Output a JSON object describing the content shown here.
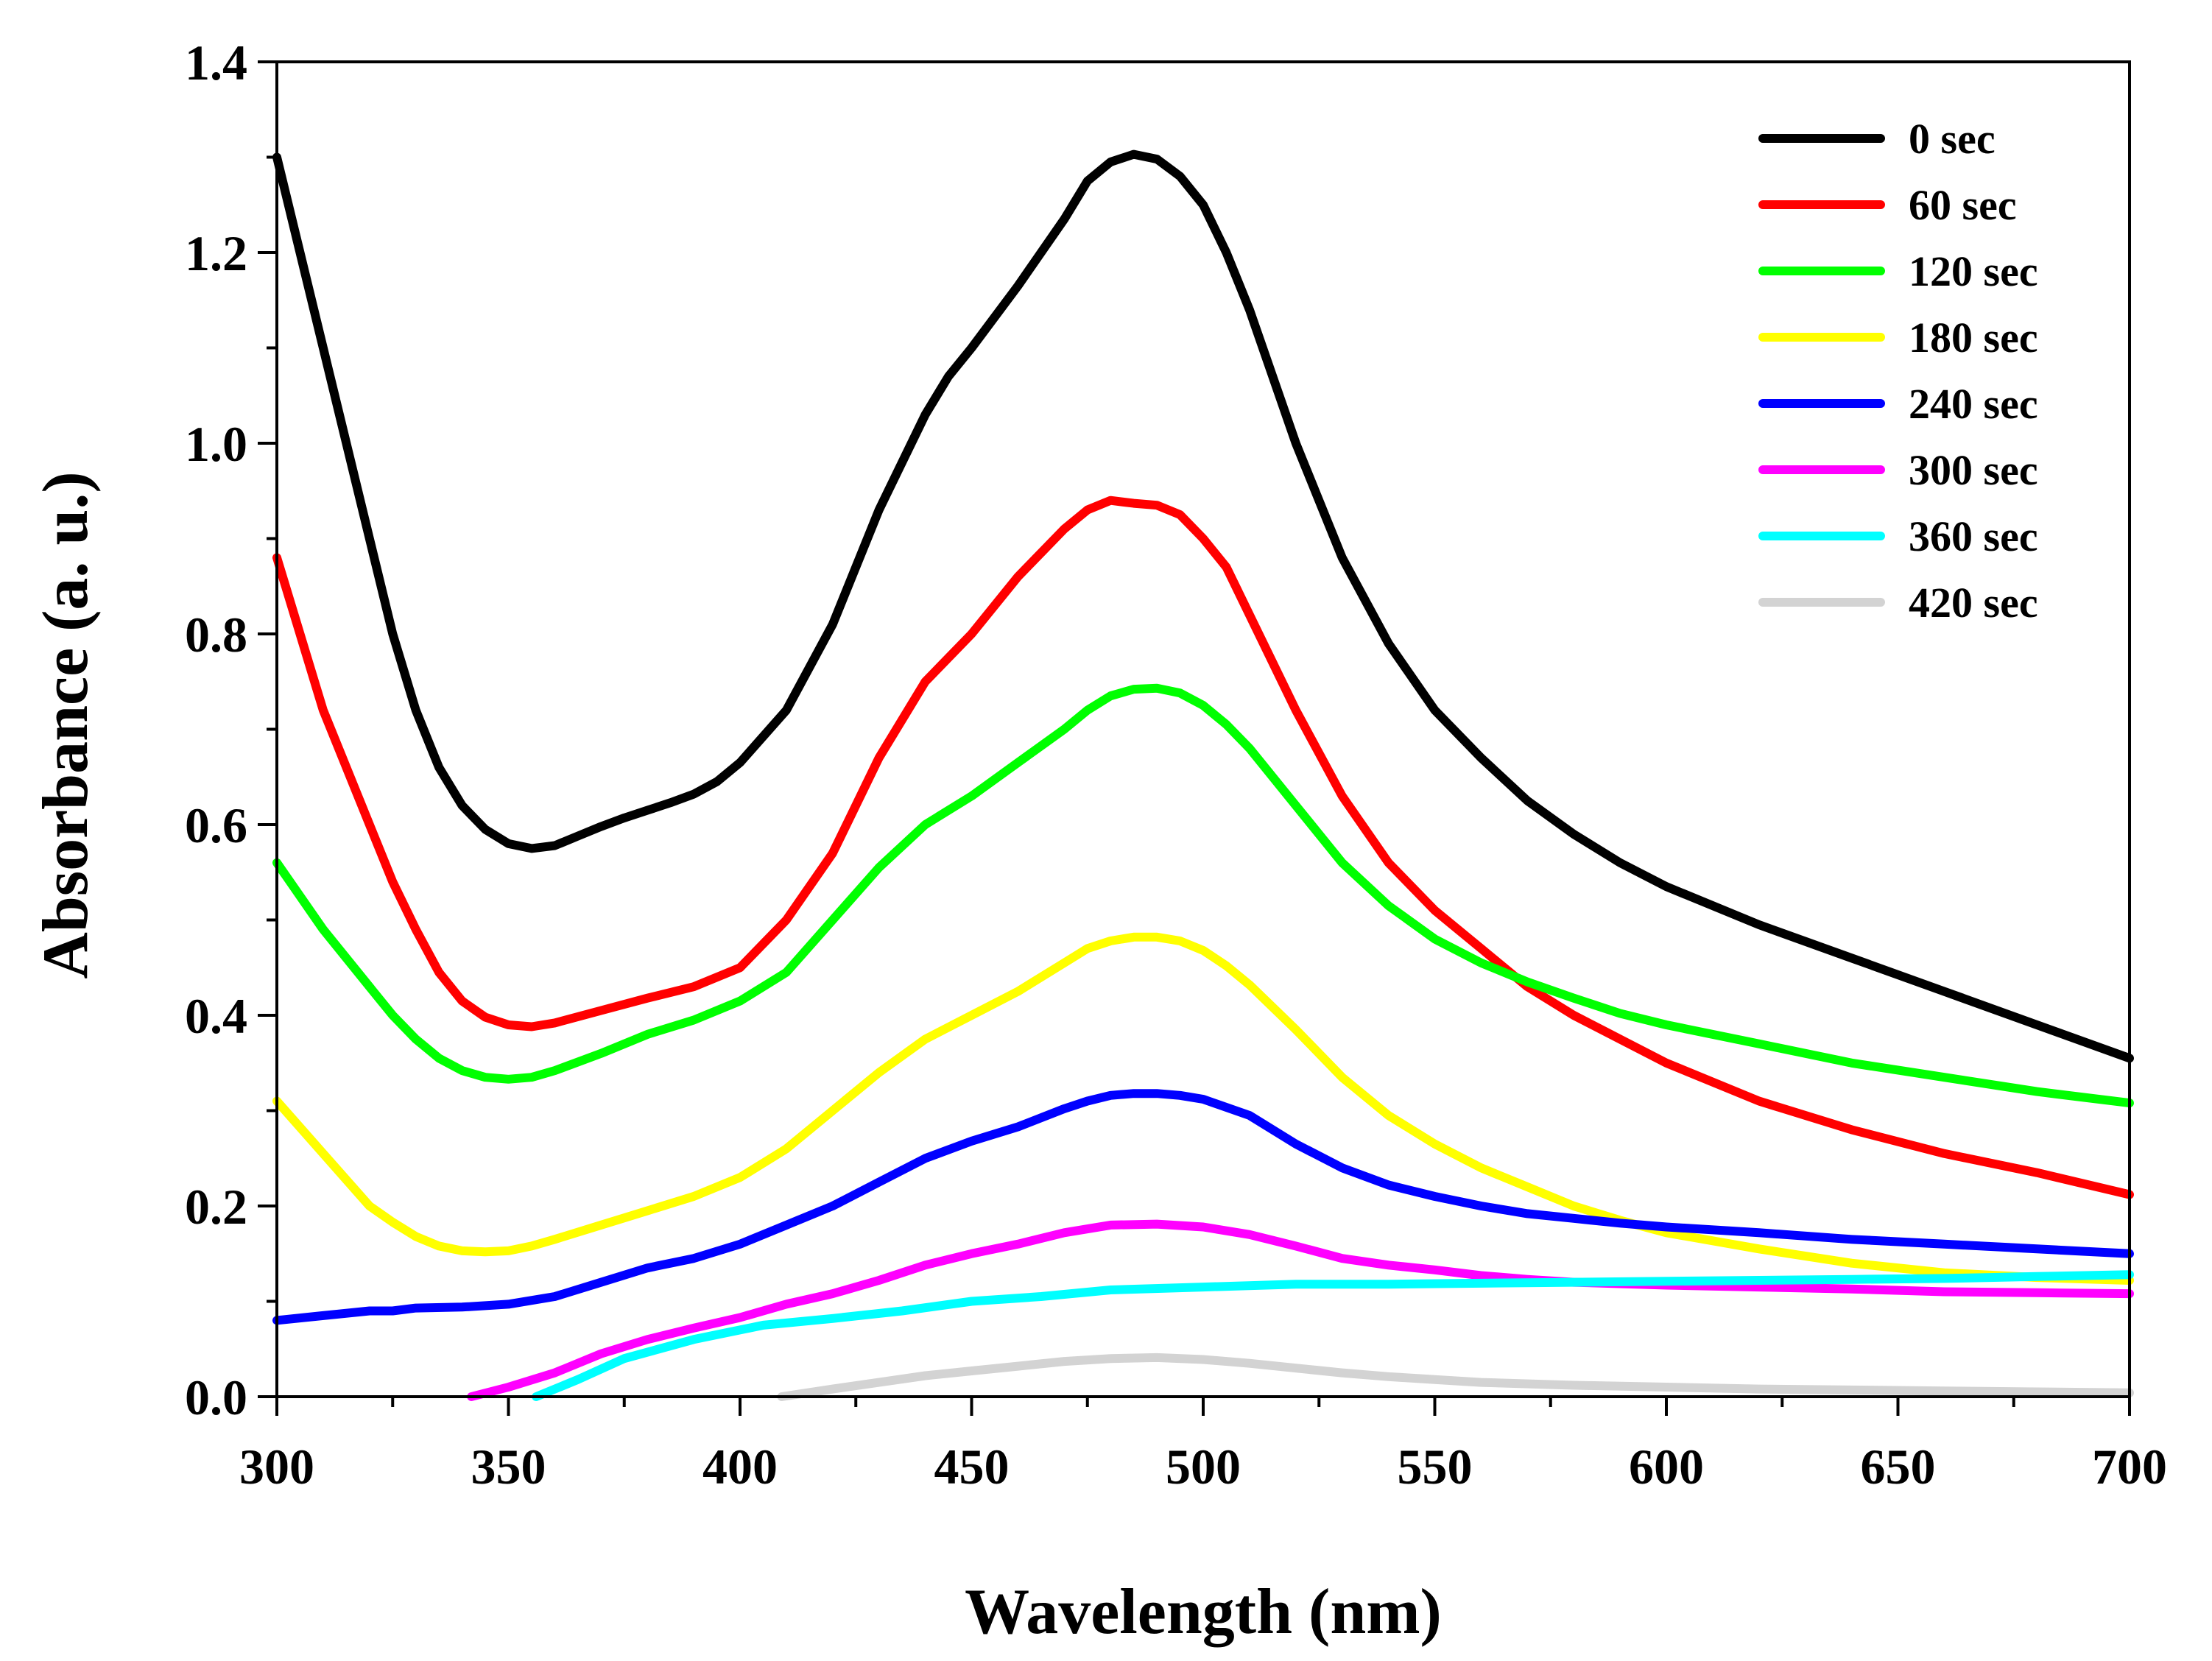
{
  "chart_data": {
    "type": "line",
    "title": "",
    "xlabel": "Wavelength (nm)",
    "ylabel": "Absorbance (a. u.)",
    "xlim": [
      300,
      700
    ],
    "ylim": [
      0.0,
      1.4
    ],
    "grid": false,
    "legend_position": "top-right",
    "x_ticks": [
      300,
      350,
      400,
      450,
      500,
      550,
      600,
      650,
      700
    ],
    "x_tick_labels": [
      "300",
      "350",
      "400",
      "450",
      "500",
      "550",
      "600",
      "650",
      "700"
    ],
    "y_ticks": [
      0.0,
      0.2,
      0.4,
      0.6,
      0.8,
      1.0,
      1.2,
      1.4
    ],
    "y_tick_labels": [
      "0.0",
      "0.2",
      "0.4",
      "0.6",
      "0.8",
      "1.0",
      "1.2",
      "1.4"
    ],
    "series": [
      {
        "name": "0 sec",
        "color": "#000000",
        "x": [
          300,
          310,
          320,
          325,
          330,
          335,
          340,
          345,
          350,
          355,
          360,
          365,
          370,
          375,
          380,
          385,
          390,
          395,
          400,
          410,
          420,
          430,
          440,
          445,
          450,
          460,
          470,
          475,
          480,
          485,
          490,
          495,
          500,
          505,
          510,
          520,
          530,
          540,
          550,
          560,
          570,
          580,
          590,
          600,
          620,
          640,
          660,
          680,
          700
        ],
        "y": [
          1.3,
          1.1,
          0.9,
          0.8,
          0.72,
          0.66,
          0.62,
          0.595,
          0.58,
          0.575,
          0.578,
          0.588,
          0.598,
          0.607,
          0.615,
          0.623,
          0.632,
          0.645,
          0.665,
          0.72,
          0.81,
          0.93,
          1.03,
          1.07,
          1.1,
          1.165,
          1.235,
          1.275,
          1.295,
          1.303,
          1.298,
          1.28,
          1.25,
          1.2,
          1.14,
          1.0,
          0.88,
          0.79,
          0.72,
          0.67,
          0.625,
          0.59,
          0.56,
          0.535,
          0.495,
          0.46,
          0.425,
          0.39,
          0.355
        ]
      },
      {
        "name": "60 sec",
        "color": "#ff0000",
        "x": [
          300,
          310,
          320,
          325,
          330,
          335,
          340,
          345,
          350,
          355,
          360,
          370,
          380,
          390,
          400,
          410,
          420,
          430,
          440,
          450,
          460,
          470,
          475,
          480,
          485,
          490,
          495,
          500,
          505,
          510,
          520,
          530,
          540,
          550,
          560,
          570,
          580,
          590,
          600,
          620,
          640,
          660,
          680,
          700
        ],
        "y": [
          0.88,
          0.72,
          0.6,
          0.54,
          0.49,
          0.445,
          0.415,
          0.398,
          0.39,
          0.388,
          0.392,
          0.405,
          0.418,
          0.43,
          0.45,
          0.5,
          0.57,
          0.67,
          0.75,
          0.8,
          0.86,
          0.91,
          0.93,
          0.94,
          0.937,
          0.935,
          0.925,
          0.9,
          0.87,
          0.82,
          0.72,
          0.63,
          0.56,
          0.51,
          0.47,
          0.43,
          0.4,
          0.375,
          0.35,
          0.31,
          0.28,
          0.255,
          0.235,
          0.212
        ]
      },
      {
        "name": "120 sec",
        "color": "#00ff00",
        "x": [
          300,
          310,
          320,
          325,
          330,
          335,
          340,
          345,
          350,
          355,
          360,
          370,
          380,
          390,
          400,
          410,
          420,
          430,
          440,
          450,
          460,
          470,
          475,
          480,
          485,
          490,
          495,
          500,
          505,
          510,
          520,
          530,
          540,
          550,
          560,
          570,
          580,
          590,
          600,
          620,
          640,
          660,
          680,
          700
        ],
        "y": [
          0.56,
          0.49,
          0.43,
          0.4,
          0.375,
          0.355,
          0.342,
          0.335,
          0.333,
          0.335,
          0.342,
          0.36,
          0.38,
          0.395,
          0.415,
          0.445,
          0.5,
          0.555,
          0.6,
          0.63,
          0.665,
          0.7,
          0.72,
          0.735,
          0.742,
          0.743,
          0.738,
          0.725,
          0.705,
          0.68,
          0.62,
          0.56,
          0.515,
          0.48,
          0.455,
          0.435,
          0.418,
          0.402,
          0.39,
          0.37,
          0.35,
          0.335,
          0.32,
          0.308
        ]
      },
      {
        "name": "180 sec",
        "color": "#ffff00",
        "x": [
          300,
          310,
          320,
          325,
          330,
          335,
          340,
          345,
          350,
          355,
          360,
          370,
          380,
          390,
          400,
          410,
          420,
          430,
          440,
          450,
          460,
          470,
          475,
          480,
          485,
          490,
          495,
          500,
          505,
          510,
          520,
          530,
          540,
          550,
          560,
          570,
          580,
          590,
          600,
          620,
          640,
          660,
          680,
          700
        ],
        "y": [
          0.31,
          0.255,
          0.2,
          0.183,
          0.168,
          0.158,
          0.153,
          0.152,
          0.153,
          0.158,
          0.165,
          0.18,
          0.195,
          0.21,
          0.23,
          0.26,
          0.3,
          0.34,
          0.375,
          0.4,
          0.425,
          0.455,
          0.47,
          0.478,
          0.482,
          0.482,
          0.478,
          0.468,
          0.452,
          0.432,
          0.385,
          0.335,
          0.295,
          0.265,
          0.24,
          0.22,
          0.2,
          0.185,
          0.172,
          0.155,
          0.14,
          0.13,
          0.125,
          0.122
        ]
      },
      {
        "name": "240 sec",
        "color": "#0000ff",
        "x": [
          300,
          310,
          320,
          325,
          330,
          340,
          350,
          360,
          370,
          380,
          390,
          400,
          410,
          420,
          430,
          440,
          450,
          460,
          470,
          475,
          480,
          485,
          490,
          495,
          500,
          510,
          520,
          530,
          540,
          550,
          560,
          570,
          580,
          590,
          600,
          620,
          640,
          660,
          680,
          700
        ],
        "y": [
          0.08,
          0.085,
          0.09,
          0.09,
          0.093,
          0.094,
          0.097,
          0.105,
          0.12,
          0.135,
          0.145,
          0.16,
          0.18,
          0.2,
          0.225,
          0.25,
          0.268,
          0.283,
          0.302,
          0.31,
          0.316,
          0.318,
          0.318,
          0.316,
          0.312,
          0.295,
          0.265,
          0.24,
          0.222,
          0.21,
          0.2,
          0.192,
          0.187,
          0.182,
          0.178,
          0.172,
          0.165,
          0.16,
          0.155,
          0.15
        ]
      },
      {
        "name": "300 sec",
        "color": "#ff00ff",
        "x": [
          342,
          350,
          360,
          370,
          380,
          390,
          400,
          410,
          420,
          430,
          440,
          450,
          460,
          470,
          480,
          490,
          500,
          510,
          520,
          530,
          540,
          550,
          560,
          570,
          580,
          600,
          620,
          640,
          660,
          680,
          700
        ],
        "y": [
          0.0,
          0.01,
          0.025,
          0.045,
          0.06,
          0.072,
          0.083,
          0.097,
          0.108,
          0.122,
          0.138,
          0.15,
          0.16,
          0.172,
          0.18,
          0.181,
          0.178,
          0.17,
          0.158,
          0.145,
          0.138,
          0.133,
          0.127,
          0.123,
          0.12,
          0.117,
          0.115,
          0.113,
          0.11,
          0.109,
          0.108
        ]
      },
      {
        "name": "360 sec",
        "color": "#00ffff",
        "x": [
          356,
          365,
          375,
          390,
          405,
          420,
          435,
          450,
          465,
          480,
          500,
          520,
          540,
          560,
          580,
          600,
          620,
          640,
          660,
          680,
          700
        ],
        "y": [
          0.0,
          0.018,
          0.04,
          0.06,
          0.075,
          0.082,
          0.09,
          0.1,
          0.105,
          0.112,
          0.115,
          0.118,
          0.118,
          0.119,
          0.12,
          0.121,
          0.122,
          0.123,
          0.124,
          0.126,
          0.128
        ]
      },
      {
        "name": "420 sec",
        "color": "#d3d3d3",
        "x": [
          409,
          420,
          430,
          440,
          450,
          460,
          470,
          480,
          490,
          500,
          510,
          520,
          530,
          540,
          550,
          560,
          580,
          600,
          620,
          640,
          660,
          680,
          700
        ],
        "y": [
          0.0,
          0.008,
          0.015,
          0.022,
          0.027,
          0.032,
          0.037,
          0.04,
          0.041,
          0.039,
          0.035,
          0.03,
          0.025,
          0.021,
          0.018,
          0.015,
          0.012,
          0.01,
          0.008,
          0.007,
          0.006,
          0.005,
          0.004
        ]
      }
    ]
  }
}
